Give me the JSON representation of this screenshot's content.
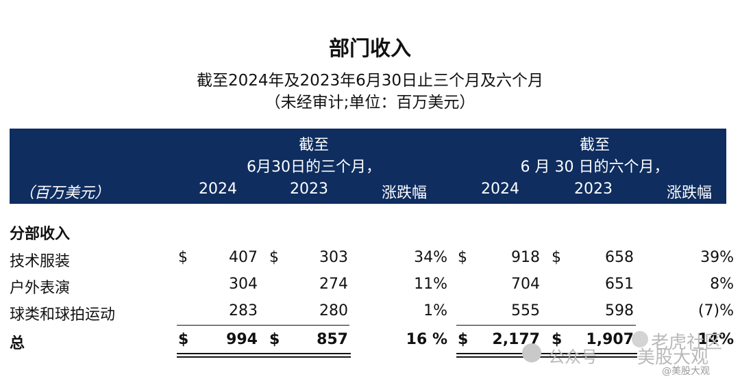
{
  "title": "部门收入",
  "subtitle1": "截至2024年及2023年6月30日止三个月及六个月",
  "subtitle2": "（未经审计;单位：百万美元）",
  "header": {
    "unit_label": "（百万美元）",
    "group1_line1": "截至",
    "group1_line2": "6月30日的三个月，",
    "group2_line1": "截至",
    "group2_line2": "6 月 30 日的六个月，",
    "col_2024": "2024",
    "col_2023": "2023",
    "col_change": "涨跌幅"
  },
  "section_label": "分部收入",
  "rows": [
    {
      "label": "技术服装",
      "d1": "$",
      "q2024": "407",
      "d2": "$",
      "q2023": "303",
      "qchg": "34%",
      "d3": "$",
      "h2024": "918",
      "d4": "$",
      "h2023": "658",
      "hchg": "39%"
    },
    {
      "label": "户外表演",
      "q2024": "304",
      "q2023": "274",
      "qchg": "11%",
      "h2024": "704",
      "h2023": "651",
      "hchg": "8%"
    },
    {
      "label": "球类和球拍运动",
      "q2024": "283",
      "q2023": "280",
      "qchg": "1%",
      "h2024": "555",
      "h2023": "598",
      "hchg": "(7)%"
    }
  ],
  "total": {
    "label": "总",
    "d1": "$",
    "q2024": "994",
    "d2": "$",
    "q2023": "857",
    "qchg": "16 %",
    "d3": "$",
    "h2024": "2,177",
    "d4": "$",
    "h2023": "1,907",
    "hchg": "14%"
  },
  "watermark": {
    "wechat": "公众号",
    "name1": "老虎社区",
    "name2": "美股大观",
    "handle": "@美股大观"
  }
}
